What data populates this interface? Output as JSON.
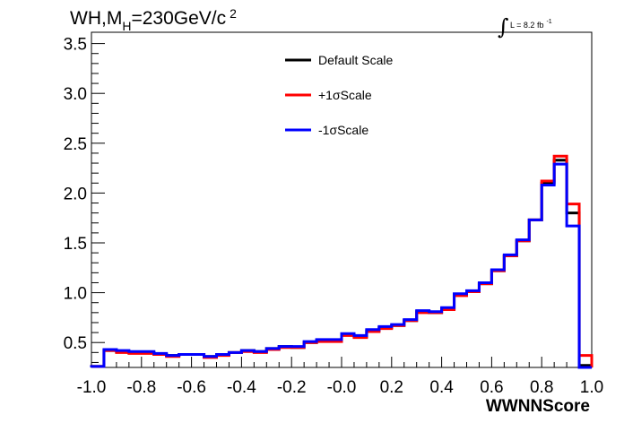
{
  "chart_data": {
    "type": "line",
    "title": {
      "main": "WH,M",
      "subscript": "H",
      "rest": "=230GeV/c",
      "superscript": "2"
    },
    "luminosity": {
      "text": "L = 8.2 fb",
      "superscript": "-1"
    },
    "xlabel": "WWNNScore",
    "ylabel": "",
    "xlim": [
      -1.0,
      1.0
    ],
    "ylim": [
      0.25,
      3.6
    ],
    "x_ticks": [
      "-1.0",
      "-0.8",
      "-0.6",
      "-0.4",
      "-0.2",
      "-0.0",
      "0.2",
      "0.4",
      "0.6",
      "0.8",
      "1.0"
    ],
    "y_ticks": [
      "0.5",
      "1.0",
      "1.5",
      "2.0",
      "2.5",
      "3.0",
      "3.5"
    ],
    "bin_edges": [
      -1.0,
      -0.95,
      -0.9,
      -0.85,
      -0.8,
      -0.75,
      -0.7,
      -0.65,
      -0.6,
      -0.55,
      -0.5,
      -0.45,
      -0.4,
      -0.35,
      -0.3,
      -0.25,
      -0.2,
      -0.15,
      -0.1,
      -0.05,
      0.0,
      0.05,
      0.1,
      0.15,
      0.2,
      0.25,
      0.3,
      0.35,
      0.4,
      0.45,
      0.5,
      0.55,
      0.6,
      0.65,
      0.7,
      0.75,
      0.8,
      0.85,
      0.9,
      0.95,
      1.0
    ],
    "series": [
      {
        "name": "Default Scale",
        "color": "#000000",
        "values": [
          0.26,
          0.42,
          0.41,
          0.4,
          0.4,
          0.38,
          0.37,
          0.38,
          0.38,
          0.36,
          0.38,
          0.4,
          0.42,
          0.41,
          0.44,
          0.46,
          0.45,
          0.5,
          0.52,
          0.52,
          0.58,
          0.56,
          0.62,
          0.65,
          0.67,
          0.72,
          0.81,
          0.8,
          0.84,
          0.98,
          1.01,
          1.09,
          1.22,
          1.37,
          1.52,
          1.73,
          2.1,
          2.33,
          1.8,
          0.27
        ]
      },
      {
        "name": "+1σScale",
        "color": "#ff0000",
        "values": [
          0.26,
          0.42,
          0.4,
          0.39,
          0.39,
          0.38,
          0.36,
          0.38,
          0.38,
          0.35,
          0.37,
          0.4,
          0.41,
          0.4,
          0.43,
          0.45,
          0.45,
          0.5,
          0.51,
          0.51,
          0.57,
          0.55,
          0.61,
          0.64,
          0.67,
          0.72,
          0.8,
          0.8,
          0.83,
          0.97,
          1.01,
          1.09,
          1.22,
          1.37,
          1.52,
          1.73,
          2.12,
          2.37,
          1.89,
          0.37
        ]
      },
      {
        "name": "-1σScale",
        "color": "#0000ff",
        "values": [
          0.26,
          0.43,
          0.42,
          0.41,
          0.41,
          0.39,
          0.37,
          0.38,
          0.38,
          0.36,
          0.38,
          0.4,
          0.42,
          0.41,
          0.44,
          0.46,
          0.46,
          0.51,
          0.53,
          0.53,
          0.59,
          0.57,
          0.63,
          0.66,
          0.68,
          0.73,
          0.82,
          0.81,
          0.85,
          0.99,
          1.02,
          1.1,
          1.23,
          1.38,
          1.53,
          1.73,
          2.08,
          2.29,
          1.67,
          0.25
        ]
      }
    ],
    "legend": {
      "placement": "top-center",
      "entries": [
        "Default Scale",
        "+1σScale",
        "-1σScale"
      ]
    },
    "grid": false
  }
}
